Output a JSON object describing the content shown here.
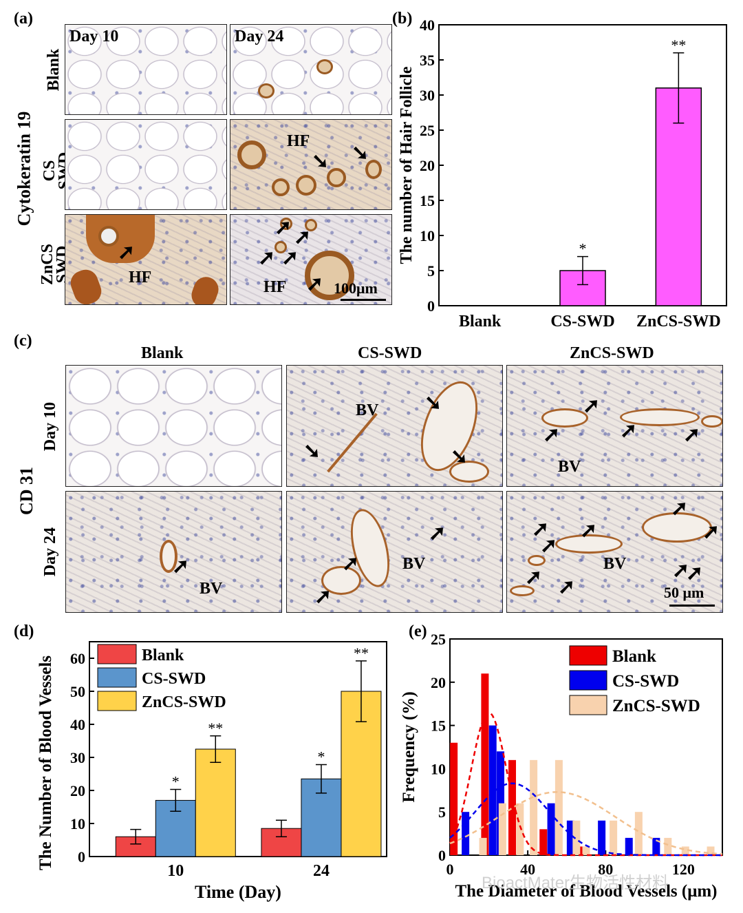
{
  "panel_a": {
    "label": "(a)",
    "stain_label": "Cytokeratin 19",
    "col_labels": [
      "Day 10",
      "Day 24"
    ],
    "row_labels": [
      "Blank",
      "CS SWD",
      "ZnCS SWD"
    ],
    "hf_labels": [
      "HF",
      "HF",
      "HF"
    ],
    "scale_bar": "100μm"
  },
  "panel_c": {
    "label": "(c)",
    "stain_label": "CD 31",
    "col_labels": [
      "Blank",
      "CS-SWD",
      "ZnCS-SWD"
    ],
    "row_labels": [
      "Day 10",
      "Day 24"
    ],
    "bv_label": "BV",
    "scale_bar": "50 μm"
  },
  "watermark": "BioactMater生物活性材料",
  "chart_data": [
    {
      "id": "b",
      "label": "(b)",
      "type": "bar",
      "categories": [
        "Blank",
        "CS-SWD",
        "ZnCS-SWD"
      ],
      "values": [
        0,
        5,
        31
      ],
      "errors": [
        0,
        2,
        5
      ],
      "significance": [
        "",
        "*",
        "**"
      ],
      "ylabel": "The number of Hair Follicle",
      "xlabel": "",
      "ylim": [
        0,
        40
      ],
      "yticks": [
        0,
        5,
        10,
        15,
        20,
        25,
        30,
        35,
        40
      ],
      "bar_color": "#ff5cff"
    },
    {
      "id": "d",
      "label": "(d)",
      "type": "bar",
      "categories": [
        "10",
        "24"
      ],
      "series": [
        {
          "name": "Blank",
          "values": [
            6,
            8.5
          ],
          "errors": [
            2.2,
            2.5
          ],
          "significance": [
            "",
            ""
          ],
          "color": "#ef4545"
        },
        {
          "name": "CS-SWD",
          "values": [
            17,
            23.5
          ],
          "errors": [
            3.3,
            4.3
          ],
          "significance": [
            "*",
            "*"
          ],
          "color": "#5b95cc"
        },
        {
          "name": "ZnCS-SWD",
          "values": [
            32.5,
            50
          ],
          "errors": [
            4,
            9.2
          ],
          "significance": [
            "**",
            "**"
          ],
          "color": "#ffd24a"
        }
      ],
      "xlabel": "Time (Day)",
      "ylabel": "The Number of Blood Vessels",
      "ylim": [
        0,
        65
      ],
      "yticks": [
        0,
        10,
        20,
        30,
        40,
        50,
        60
      ],
      "legend": "top-left"
    },
    {
      "id": "e",
      "label": "(e)",
      "type": "bar",
      "xlabel": "The Diameter of Blood Vessels (μm)",
      "ylabel": "Frequency (%)",
      "xlim": [
        0,
        140
      ],
      "ylim": [
        0,
        25
      ],
      "xticks": [
        0,
        40,
        80,
        120
      ],
      "yticks": [
        0,
        5,
        10,
        15,
        20,
        25
      ],
      "legend": "top-right",
      "series": [
        {
          "name": "Blank",
          "color": "#ee0000",
          "x": [
            2,
            18,
            32,
            48,
            67
          ],
          "values": [
            13,
            21,
            11,
            3,
            1
          ]
        },
        {
          "name": "CS-SWD",
          "color": "#0000ee",
          "x": [
            8,
            22,
            26,
            52,
            62,
            78,
            92,
            106
          ],
          "values": [
            5,
            15,
            12,
            6,
            4,
            4,
            2,
            2
          ]
        },
        {
          "name": "ZnCS-SWD",
          "color": "#f8d2ae",
          "x": [
            17,
            27,
            36,
            43,
            56,
            65,
            70,
            84,
            97,
            112,
            121,
            134,
            148
          ],
          "values": [
            2,
            6,
            6,
            11,
            11,
            4,
            1,
            4,
            5,
            2,
            1,
            1,
            1
          ]
        }
      ],
      "fit_curves": [
        {
          "name": "Blank",
          "mean": 20,
          "sd": 9,
          "peak": 16.5
        },
        {
          "name": "CS-SWD",
          "mean": 32,
          "sd": 19,
          "peak": 8.3
        },
        {
          "name": "ZnCS-SWD",
          "mean": 55,
          "sd": 30,
          "peak": 7.3
        }
      ]
    }
  ]
}
